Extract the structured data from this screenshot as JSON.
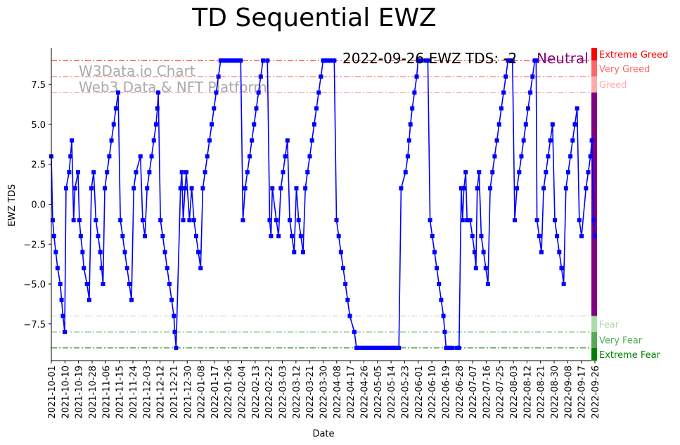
{
  "chart_data": {
    "type": "line",
    "title": "TD Sequential EWZ",
    "xlabel": "Date",
    "ylabel": "EWZ TDS",
    "ylim": [
      -9.8,
      9.8
    ],
    "yticks": [
      -7.5,
      -5.0,
      -2.5,
      0.0,
      2.5,
      5.0,
      7.5
    ],
    "ytick_labels": [
      "−7.5",
      "−5.0",
      "−2.5",
      "0.0",
      "2.5",
      "5.0",
      "7.5"
    ],
    "x_start_date": "2021-10-01",
    "x_end_date": "2022-09-26",
    "xtick_labels": [
      "2021-10-01",
      "2021-10-10",
      "2021-10-19",
      "2021-10-28",
      "2021-11-06",
      "2021-11-15",
      "2021-11-24",
      "2021-12-03",
      "2021-12-12",
      "2021-12-21",
      "2021-12-30",
      "2022-01-08",
      "2022-01-17",
      "2022-01-26",
      "2022-02-04",
      "2022-02-13",
      "2022-02-22",
      "2022-03-03",
      "2022-03-12",
      "2022-03-21",
      "2022-03-30",
      "2022-04-08",
      "2022-04-17",
      "2022-04-26",
      "2022-05-05",
      "2022-05-14",
      "2022-05-23",
      "2022-06-01",
      "2022-06-10",
      "2022-06-19",
      "2022-06-28",
      "2022-07-07",
      "2022-07-16",
      "2022-07-25",
      "2022-08-03",
      "2022-08-12",
      "2022-08-21",
      "2022-08-30",
      "2022-09-08",
      "2022-09-17",
      "2022-09-26"
    ],
    "series": [
      {
        "name": "EWZ TDS",
        "color": "#0000ff",
        "points": [
          [
            0,
            3
          ],
          [
            0.3,
            -1
          ],
          [
            0.6,
            -2
          ],
          [
            1,
            -3
          ],
          [
            1.4,
            -4
          ],
          [
            2,
            -5
          ],
          [
            2.3,
            -6
          ],
          [
            2.6,
            -7
          ],
          [
            3,
            -8
          ],
          [
            3.3,
            1
          ],
          [
            4,
            2
          ],
          [
            4.3,
            3
          ],
          [
            4.6,
            4
          ],
          [
            5,
            -1
          ],
          [
            5.3,
            1
          ],
          [
            6,
            2
          ],
          [
            6.3,
            -1
          ],
          [
            6.6,
            -2
          ],
          [
            7,
            -3
          ],
          [
            7.3,
            -4
          ],
          [
            8,
            -5
          ],
          [
            8.5,
            -6
          ],
          [
            9,
            1
          ],
          [
            9.5,
            2
          ],
          [
            10,
            -1
          ],
          [
            10.5,
            -2
          ],
          [
            11,
            -3
          ],
          [
            11.3,
            -4
          ],
          [
            11.6,
            -5
          ],
          [
            12,
            1
          ],
          [
            12.5,
            2
          ],
          [
            13,
            3
          ],
          [
            13.5,
            4
          ],
          [
            14,
            5
          ],
          [
            14.5,
            6
          ],
          [
            15,
            7
          ],
          [
            15.5,
            -1
          ],
          [
            16,
            -2
          ],
          [
            16.5,
            -3
          ],
          [
            17,
            -4
          ],
          [
            17.5,
            -5
          ],
          [
            18,
            -6
          ],
          [
            18.5,
            1
          ],
          [
            19,
            2
          ],
          [
            20,
            3
          ],
          [
            20.5,
            -1
          ],
          [
            21,
            -2
          ],
          [
            21.5,
            1
          ],
          [
            22,
            2
          ],
          [
            22.5,
            3
          ],
          [
            23,
            4
          ],
          [
            23.5,
            5
          ],
          [
            23.8,
            6
          ],
          [
            24,
            7
          ],
          [
            24.5,
            -1
          ],
          [
            25,
            -2
          ],
          [
            25.5,
            -3
          ],
          [
            26,
            -4
          ],
          [
            26.5,
            -5
          ],
          [
            27,
            -6
          ],
          [
            27.5,
            -7
          ],
          [
            27.7,
            -8
          ],
          [
            28,
            -9
          ],
          [
            29,
            1
          ],
          [
            29.3,
            2
          ],
          [
            29.6,
            -1
          ],
          [
            30,
            1
          ],
          [
            30.3,
            2
          ],
          [
            31,
            -1
          ],
          [
            31.5,
            1
          ],
          [
            32,
            -1
          ],
          [
            32.5,
            -2
          ],
          [
            33,
            -3
          ],
          [
            33.5,
            -4
          ],
          [
            34,
            1
          ],
          [
            34.5,
            2
          ],
          [
            35,
            3
          ],
          [
            35.5,
            4
          ],
          [
            36,
            5
          ],
          [
            36.5,
            6
          ],
          [
            37,
            7
          ],
          [
            37.5,
            8
          ],
          [
            38,
            9
          ],
          [
            38.5,
            9
          ],
          [
            39,
            9
          ],
          [
            39.5,
            9
          ],
          [
            40,
            9
          ],
          [
            40.5,
            9
          ],
          [
            41,
            9
          ],
          [
            41.5,
            9
          ],
          [
            42,
            9
          ],
          [
            42.5,
            9
          ],
          [
            43,
            -1
          ],
          [
            43.5,
            1
          ],
          [
            44,
            2
          ],
          [
            44.5,
            3
          ],
          [
            45,
            4
          ],
          [
            45.5,
            5
          ],
          [
            46,
            6
          ],
          [
            46.5,
            7
          ],
          [
            47,
            8
          ],
          [
            47.5,
            9
          ],
          [
            48.5,
            9
          ],
          [
            49,
            -1
          ],
          [
            49.3,
            -2
          ],
          [
            49.6,
            1
          ],
          [
            50.5,
            -1
          ],
          [
            51,
            -2
          ],
          [
            51.5,
            1
          ],
          [
            52,
            2
          ],
          [
            52.5,
            3
          ],
          [
            53,
            4
          ],
          [
            53.5,
            -1
          ],
          [
            54,
            -2
          ],
          [
            54.5,
            -3
          ],
          [
            55,
            1
          ],
          [
            55.5,
            -1
          ],
          [
            56,
            -2
          ],
          [
            56.5,
            -3
          ],
          [
            57,
            1
          ],
          [
            57.5,
            2
          ],
          [
            58,
            3
          ],
          [
            58.5,
            4
          ],
          [
            59,
            5
          ],
          [
            59.5,
            6
          ],
          [
            60,
            7
          ],
          [
            60.5,
            8
          ],
          [
            61,
            9
          ],
          [
            61.5,
            9
          ],
          [
            62,
            9
          ],
          [
            62.5,
            9
          ],
          [
            63,
            9
          ],
          [
            63.5,
            9
          ],
          [
            64,
            -1
          ],
          [
            64.5,
            -2
          ],
          [
            65,
            -3
          ],
          [
            65.5,
            -4
          ],
          [
            66,
            -5
          ],
          [
            66.5,
            -6
          ],
          [
            67,
            -7
          ],
          [
            68,
            -8
          ],
          [
            68.5,
            -9
          ],
          [
            69,
            -9
          ],
          [
            69.5,
            -9
          ],
          [
            70,
            -9
          ],
          [
            70.5,
            -9
          ],
          [
            71,
            -9
          ],
          [
            71.5,
            -9
          ],
          [
            72,
            -9
          ],
          [
            72.5,
            -9
          ],
          [
            73,
            -9
          ],
          [
            73.5,
            -9
          ],
          [
            74,
            -9
          ],
          [
            74.5,
            -9
          ],
          [
            75,
            -9
          ],
          [
            75.5,
            -9
          ],
          [
            76,
            -9
          ],
          [
            76.5,
            -9
          ],
          [
            77,
            -9
          ],
          [
            77.5,
            -9
          ],
          [
            78,
            -9
          ],
          [
            78.5,
            1
          ],
          [
            79.5,
            2
          ],
          [
            80,
            3
          ],
          [
            80.3,
            4
          ],
          [
            80.6,
            5
          ],
          [
            81,
            6
          ],
          [
            81.5,
            7
          ],
          [
            82,
            8
          ],
          [
            82.3,
            9
          ],
          [
            82.6,
            9
          ],
          [
            83,
            9
          ],
          [
            84,
            9
          ],
          [
            84.5,
            9
          ],
          [
            85,
            -1
          ],
          [
            85.5,
            -2
          ],
          [
            86,
            -3
          ],
          [
            86.5,
            -4
          ],
          [
            87,
            -5
          ],
          [
            87.5,
            -6
          ],
          [
            88,
            -7
          ],
          [
            88.3,
            -8
          ],
          [
            88.6,
            -9
          ],
          [
            89,
            -9
          ],
          [
            89.5,
            -9
          ],
          [
            90,
            -9
          ],
          [
            91,
            -9
          ],
          [
            91.5,
            -9
          ],
          [
            92,
            1
          ],
          [
            92.3,
            -1
          ],
          [
            92.6,
            1
          ],
          [
            93,
            2
          ],
          [
            93.3,
            -1
          ],
          [
            94,
            -1
          ],
          [
            94.5,
            -2
          ],
          [
            95,
            -3
          ],
          [
            95.3,
            -4
          ],
          [
            95.6,
            1
          ],
          [
            96,
            2
          ],
          [
            96.5,
            -2
          ],
          [
            97,
            -3
          ],
          [
            97.5,
            -4
          ],
          [
            98,
            -5
          ],
          [
            98.5,
            1
          ],
          [
            99,
            2
          ],
          [
            99.5,
            3
          ],
          [
            100,
            4
          ],
          [
            100.5,
            5
          ],
          [
            101,
            6
          ],
          [
            101.5,
            7
          ],
          [
            102,
            8
          ],
          [
            102.5,
            9
          ],
          [
            103,
            9
          ],
          [
            103.5,
            9
          ],
          [
            104,
            -1
          ],
          [
            104.5,
            1
          ],
          [
            105,
            2
          ],
          [
            105.5,
            3
          ],
          [
            106,
            4
          ],
          [
            106.5,
            5
          ],
          [
            107,
            6
          ],
          [
            107.5,
            7
          ],
          [
            108,
            8
          ],
          [
            108.5,
            9
          ],
          [
            108.8,
            9
          ],
          [
            109,
            -1
          ],
          [
            109.5,
            -2
          ],
          [
            110,
            -3
          ],
          [
            110.5,
            1
          ],
          [
            111,
            2
          ],
          [
            111.5,
            3
          ],
          [
            112,
            4
          ],
          [
            112.5,
            5
          ],
          [
            113,
            -1
          ],
          [
            113.5,
            -2
          ],
          [
            114,
            -3
          ],
          [
            114.5,
            -4
          ],
          [
            115,
            -5
          ],
          [
            115.5,
            1
          ],
          [
            116,
            2
          ],
          [
            116.5,
            3
          ],
          [
            117,
            4
          ],
          [
            117.5,
            5
          ],
          [
            118,
            6
          ],
          [
            118.5,
            -1
          ],
          [
            119,
            -2
          ],
          [
            120,
            1
          ],
          [
            120.5,
            2
          ],
          [
            121,
            3
          ],
          [
            121.3,
            4
          ],
          [
            121.7,
            -1
          ],
          [
            122,
            -2
          ]
        ],
        "x_index_max": 122
      }
    ],
    "hlines": [
      {
        "y": 9,
        "color": "#ff0000"
      },
      {
        "y": 8,
        "color": "#ff6666"
      },
      {
        "y": 7,
        "color": "#ffaaaa"
      },
      {
        "y": -7,
        "color": "#aaddaa"
      },
      {
        "y": -8,
        "color": "#55aa55"
      },
      {
        "y": -9,
        "color": "#008000"
      }
    ],
    "zones": [
      {
        "label": "Extreme Greed",
        "from": 9,
        "to": 9.8,
        "color": "#ff0000"
      },
      {
        "label": "Very Greed",
        "from": 8,
        "to": 9,
        "color": "#ff6666"
      },
      {
        "label": "Greed",
        "from": 7,
        "to": 8,
        "color": "#ffaaaa"
      },
      {
        "label": "",
        "from": -7,
        "to": 7,
        "color": "#800080"
      },
      {
        "label": "Fear",
        "from": -8,
        "to": -7,
        "color": "#aaddaa"
      },
      {
        "label": "Very Fear",
        "from": -9,
        "to": -8,
        "color": "#55aa55"
      },
      {
        "label": "Extreme Fear",
        "from": -9.8,
        "to": -9,
        "color": "#008000"
      }
    ],
    "watermark": [
      "W3Data.io Chart",
      "Web3 Data & NFT Platform"
    ],
    "annotation": {
      "text": "2022-09-26 EWZ TDS: -2",
      "status": "Neutral",
      "status_color": "#800080"
    }
  }
}
